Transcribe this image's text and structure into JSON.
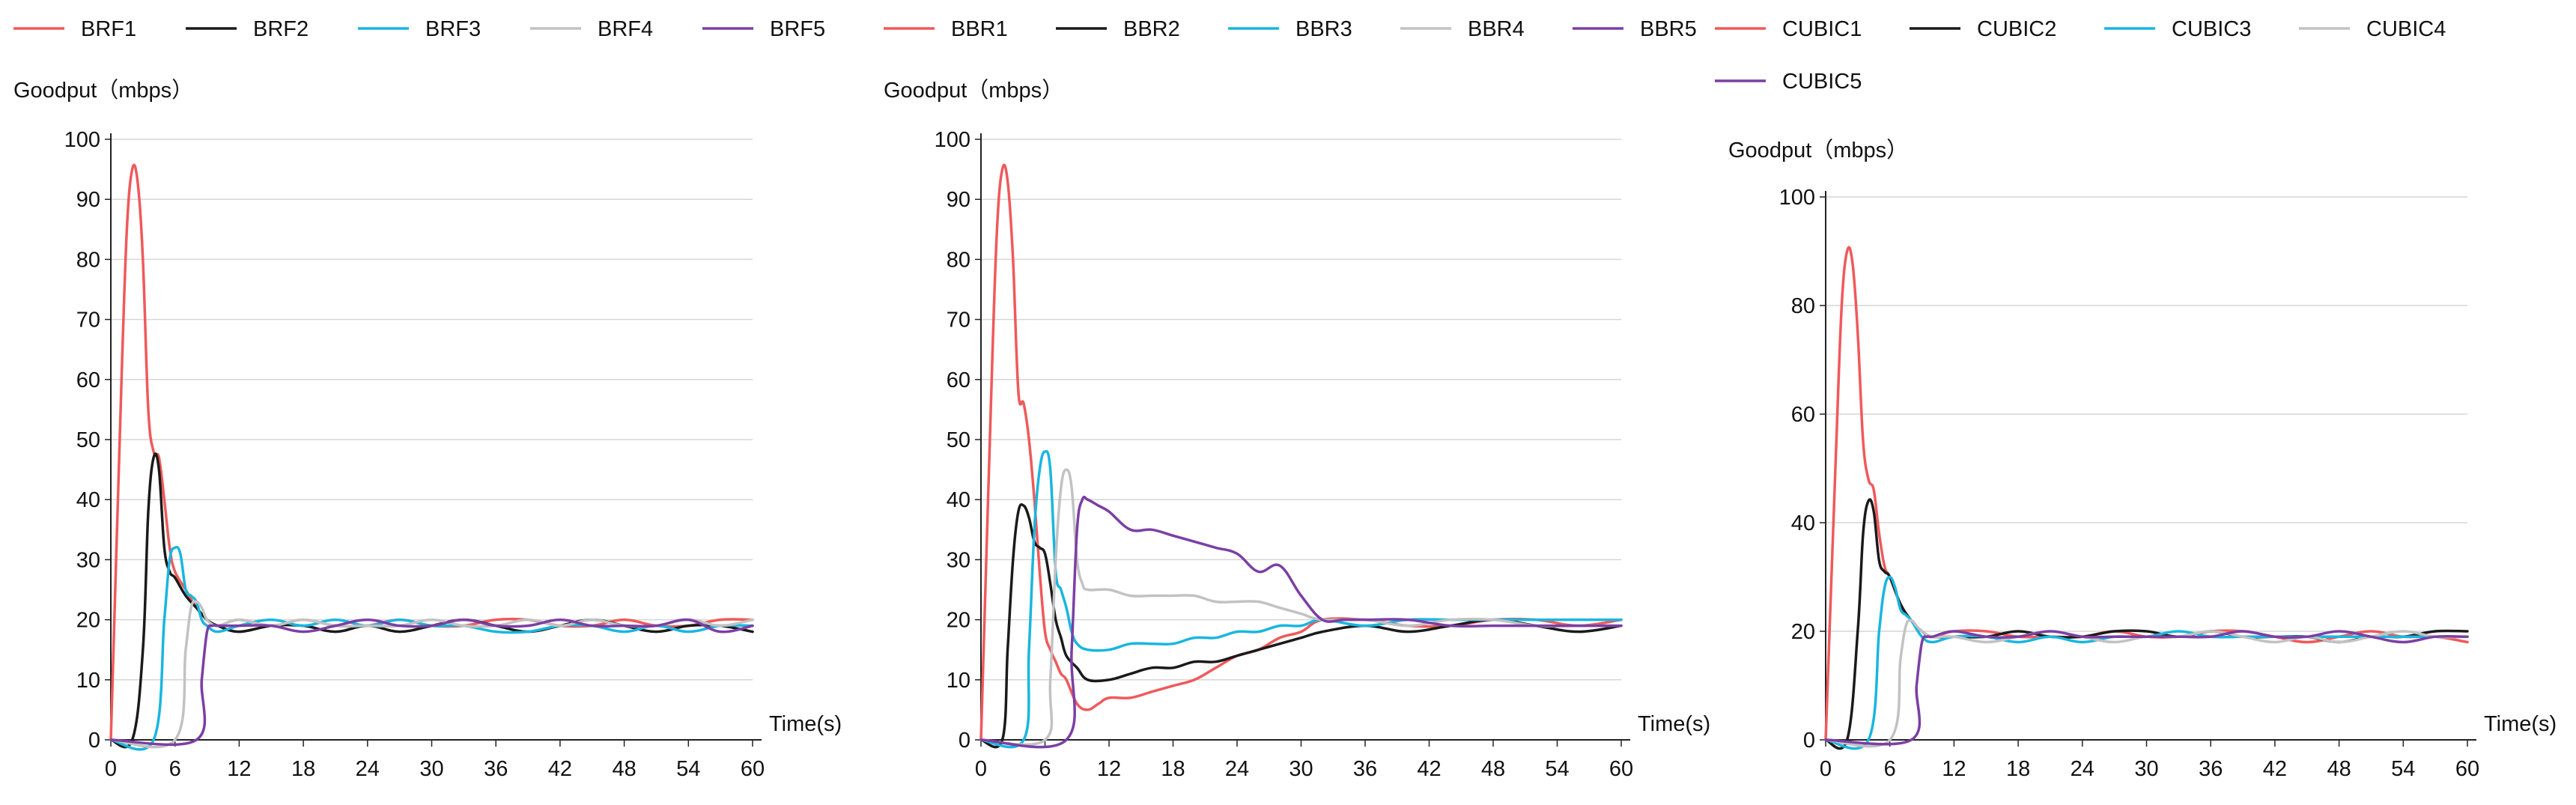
{
  "chart_data": [
    {
      "type": "line",
      "ylabel": "Goodput（mbps）",
      "xlabel": "Time(s)",
      "xlim": [
        0,
        60
      ],
      "ylim": [
        0,
        100
      ],
      "xticks": [
        0,
        6,
        12,
        18,
        24,
        30,
        36,
        42,
        48,
        54,
        60
      ],
      "yticks": [
        0,
        10,
        20,
        30,
        40,
        50,
        60,
        70,
        80,
        90,
        100
      ],
      "grid": true,
      "legend": "top",
      "series": [
        {
          "name": "BRF1",
          "color": "#f0595b",
          "x": [
            0,
            1,
            1.5,
            2,
            2.5,
            3,
            3.5,
            4,
            4.5,
            5,
            5.5,
            6,
            7,
            8,
            9,
            10,
            12,
            15,
            18,
            21,
            24,
            27,
            30,
            33,
            36,
            39,
            42,
            45,
            48,
            51,
            54,
            57,
            60
          ],
          "y": [
            0,
            60,
            85,
            95,
            93,
            80,
            55,
            48,
            47,
            40,
            32,
            28,
            25,
            22,
            20,
            19,
            20,
            19,
            20,
            19,
            19,
            20,
            19,
            19,
            20,
            20,
            19,
            19,
            20,
            19,
            19,
            20,
            20
          ]
        },
        {
          "name": "BRF2",
          "color": "#1a1a1a",
          "x": [
            0,
            2,
            3,
            3.5,
            4,
            4.5,
            5,
            5.5,
            6,
            7,
            8,
            9,
            10,
            12,
            15,
            18,
            21,
            24,
            27,
            30,
            33,
            36,
            39,
            42,
            45,
            48,
            51,
            54,
            57,
            60
          ],
          "y": [
            0,
            0,
            15,
            38,
            47,
            45,
            32,
            28,
            27,
            24,
            22,
            20,
            19,
            18,
            19,
            19,
            18,
            19,
            18,
            19,
            20,
            19,
            18,
            19,
            20,
            19,
            18,
            19,
            19,
            18
          ]
        },
        {
          "name": "BRF3",
          "color": "#19b6df",
          "x": [
            0,
            4,
            5,
            5.5,
            6,
            6.5,
            7,
            7.5,
            8,
            8.5,
            9,
            10,
            12,
            15,
            18,
            21,
            24,
            27,
            30,
            33,
            36,
            39,
            42,
            45,
            48,
            51,
            54,
            57,
            60
          ],
          "y": [
            0,
            0,
            20,
            30,
            32,
            31,
            25,
            24,
            23,
            20,
            19,
            18,
            19,
            20,
            19,
            20,
            19,
            20,
            19,
            19,
            18,
            18,
            19,
            19,
            18,
            19,
            18,
            19,
            19
          ]
        },
        {
          "name": "BRF4",
          "color": "#c2c2c2",
          "x": [
            0,
            6,
            7,
            7.5,
            8,
            8.5,
            9,
            10,
            12,
            15,
            18,
            21,
            24,
            27,
            30,
            33,
            36,
            39,
            42,
            45,
            48,
            51,
            54,
            57,
            60
          ],
          "y": [
            0,
            0,
            15,
            22,
            23,
            22,
            20,
            19,
            20,
            19,
            20,
            19,
            19,
            19,
            20,
            19,
            19,
            20,
            19,
            20,
            19,
            19,
            20,
            19,
            20
          ]
        },
        {
          "name": "BRF5",
          "color": "#7b3fa4",
          "x": [
            0,
            8,
            8.5,
            9,
            9.5,
            10,
            12,
            15,
            18,
            21,
            24,
            27,
            30,
            33,
            36,
            39,
            42,
            45,
            48,
            51,
            54,
            57,
            60
          ],
          "y": [
            0,
            0,
            10,
            18,
            19,
            19,
            19,
            19,
            18,
            19,
            20,
            19,
            19,
            20,
            19,
            19,
            20,
            19,
            19,
            19,
            20,
            18,
            19
          ]
        }
      ]
    },
    {
      "type": "line",
      "ylabel": "Goodput（mbps）",
      "xlabel": "Time(s)",
      "xlim": [
        0,
        60
      ],
      "ylim": [
        0,
        100
      ],
      "xticks": [
        0,
        6,
        12,
        18,
        24,
        30,
        36,
        42,
        48,
        54,
        60
      ],
      "yticks": [
        0,
        10,
        20,
        30,
        40,
        50,
        60,
        70,
        80,
        90,
        100
      ],
      "grid": true,
      "legend": "top",
      "series": [
        {
          "name": "BBR1",
          "color": "#f0595b",
          "x": [
            0,
            1,
            1.5,
            2,
            2.5,
            3,
            3.5,
            4,
            4.5,
            5,
            5.5,
            6,
            6.5,
            7,
            7.5,
            8,
            9,
            10,
            11,
            12,
            14,
            16,
            18,
            20,
            22,
            24,
            26,
            28,
            30,
            32,
            36,
            40,
            44,
            48,
            52,
            56,
            60
          ],
          "y": [
            0,
            60,
            85,
            95,
            93,
            80,
            58,
            56,
            50,
            40,
            28,
            18,
            15,
            13,
            11,
            10,
            6,
            5,
            6,
            7,
            7,
            8,
            9,
            10,
            12,
            14,
            15,
            17,
            18,
            20,
            20,
            19,
            19,
            20,
            20,
            19,
            20
          ]
        },
        {
          "name": "BBR2",
          "color": "#1a1a1a",
          "x": [
            0,
            2,
            2.5,
            3,
            3.5,
            4,
            4.5,
            5,
            5.5,
            6,
            6.5,
            7,
            7.5,
            8,
            9,
            10,
            12,
            14,
            16,
            18,
            20,
            22,
            24,
            26,
            28,
            30,
            32,
            36,
            40,
            44,
            48,
            52,
            56,
            60
          ],
          "y": [
            0,
            0,
            15,
            30,
            38,
            39,
            37,
            33,
            32,
            31,
            26,
            20,
            17,
            14,
            12,
            10,
            10,
            11,
            12,
            12,
            13,
            13,
            14,
            15,
            16,
            17,
            18,
            19,
            18,
            19,
            20,
            19,
            18,
            19
          ]
        },
        {
          "name": "BBR3",
          "color": "#19b6df",
          "x": [
            0,
            4,
            4.5,
            5,
            5.5,
            6,
            6.5,
            7,
            7.5,
            8,
            8.5,
            9,
            10,
            12,
            14,
            16,
            18,
            20,
            22,
            24,
            26,
            28,
            30,
            32,
            36,
            40,
            44,
            48,
            52,
            56,
            60
          ],
          "y": [
            0,
            0,
            15,
            35,
            45,
            48,
            45,
            28,
            25,
            22,
            18,
            16,
            15,
            15,
            16,
            16,
            16,
            17,
            17,
            18,
            18,
            19,
            19,
            20,
            19,
            20,
            20,
            20,
            20,
            20,
            20
          ]
        },
        {
          "name": "BBR4",
          "color": "#c2c2c2",
          "x": [
            0,
            6,
            6.5,
            7,
            7.5,
            8,
            8.5,
            9,
            9.5,
            10,
            12,
            14,
            16,
            18,
            20,
            22,
            24,
            26,
            28,
            30,
            32,
            36,
            40,
            44,
            48,
            52,
            56,
            60
          ],
          "y": [
            0,
            0,
            10,
            30,
            42,
            45,
            42,
            30,
            26,
            25,
            25,
            24,
            24,
            24,
            24,
            23,
            23,
            23,
            22,
            21,
            20,
            20,
            19,
            20,
            20,
            19,
            19,
            19
          ]
        },
        {
          "name": "BBR5",
          "color": "#7b3fa4",
          "x": [
            0,
            8,
            8.5,
            9,
            9.5,
            10,
            11,
            12,
            14,
            16,
            18,
            20,
            22,
            24,
            26,
            28,
            30,
            32,
            34,
            36,
            40,
            44,
            48,
            52,
            56,
            60
          ],
          "y": [
            0,
            0,
            15,
            35,
            40,
            40,
            39,
            38,
            35,
            35,
            34,
            33,
            32,
            31,
            28,
            29,
            24,
            20,
            20,
            20,
            20,
            19,
            19,
            19,
            19,
            19
          ]
        }
      ]
    },
    {
      "type": "line",
      "ylabel": "Goodput（mbps）",
      "xlabel": "Time(s)",
      "xlim": [
        0,
        60
      ],
      "ylim": [
        0,
        100
      ],
      "xticks": [
        0,
        6,
        12,
        18,
        24,
        30,
        36,
        42,
        48,
        54,
        60
      ],
      "yticks": [
        0,
        20,
        40,
        60,
        80,
        100
      ],
      "grid": true,
      "legend": "top",
      "series": [
        {
          "name": "CUBIC1",
          "color": "#f0595b",
          "x": [
            0,
            1,
            1.5,
            2,
            2.5,
            3,
            3.5,
            4,
            4.5,
            5,
            5.5,
            6,
            7,
            8,
            9,
            10,
            12,
            15,
            18,
            21,
            24,
            27,
            30,
            33,
            36,
            39,
            42,
            45,
            48,
            51,
            54,
            57,
            60
          ],
          "y": [
            0,
            55,
            80,
            90,
            88,
            75,
            55,
            48,
            46,
            38,
            32,
            30,
            25,
            22,
            20,
            19,
            20,
            20,
            19,
            19,
            19,
            20,
            19,
            19,
            20,
            20,
            19,
            18,
            19,
            20,
            19,
            19,
            18
          ]
        },
        {
          "name": "CUBIC2",
          "color": "#1a1a1a",
          "x": [
            0,
            2,
            3,
            3.5,
            4,
            4.5,
            5,
            5.5,
            6,
            7,
            8,
            9,
            10,
            12,
            15,
            18,
            21,
            24,
            27,
            30,
            33,
            36,
            39,
            42,
            45,
            48,
            51,
            54,
            57,
            60
          ],
          "y": [
            0,
            0,
            20,
            38,
            44,
            42,
            33,
            31,
            30,
            25,
            22,
            20,
            19,
            19,
            19,
            20,
            19,
            19,
            20,
            20,
            19,
            20,
            19,
            19,
            19,
            18,
            19,
            19,
            20,
            20
          ]
        },
        {
          "name": "CUBIC3",
          "color": "#19b6df",
          "x": [
            0,
            4,
            5,
            5.5,
            6,
            6.5,
            7,
            7.5,
            8,
            9,
            10,
            12,
            15,
            18,
            21,
            24,
            27,
            30,
            33,
            36,
            39,
            42,
            45,
            48,
            51,
            54,
            57,
            60
          ],
          "y": [
            0,
            0,
            20,
            28,
            30,
            28,
            24,
            23,
            22,
            19,
            18,
            19,
            19,
            18,
            19,
            18,
            19,
            19,
            20,
            19,
            19,
            19,
            19,
            19,
            19,
            19,
            19,
            19
          ]
        },
        {
          "name": "CUBIC4",
          "color": "#c2c2c2",
          "x": [
            0,
            6,
            7,
            7.5,
            8,
            8.5,
            9,
            10,
            12,
            15,
            18,
            21,
            24,
            27,
            30,
            33,
            36,
            39,
            42,
            45,
            48,
            51,
            54,
            57,
            60
          ],
          "y": [
            0,
            0,
            15,
            21,
            22,
            21,
            20,
            19,
            19,
            18,
            19,
            20,
            19,
            18,
            19,
            19,
            20,
            19,
            18,
            19,
            18,
            19,
            20,
            19,
            19
          ]
        },
        {
          "name": "CUBIC5",
          "color": "#7b3fa4",
          "x": [
            0,
            8,
            8.5,
            9,
            9.5,
            10,
            12,
            15,
            18,
            21,
            24,
            27,
            30,
            33,
            36,
            39,
            42,
            45,
            48,
            51,
            54,
            57,
            60
          ],
          "y": [
            0,
            0,
            10,
            18,
            19,
            19,
            20,
            19,
            19,
            20,
            19,
            19,
            19,
            19,
            19,
            20,
            19,
            19,
            20,
            19,
            18,
            19,
            19
          ]
        }
      ]
    }
  ]
}
